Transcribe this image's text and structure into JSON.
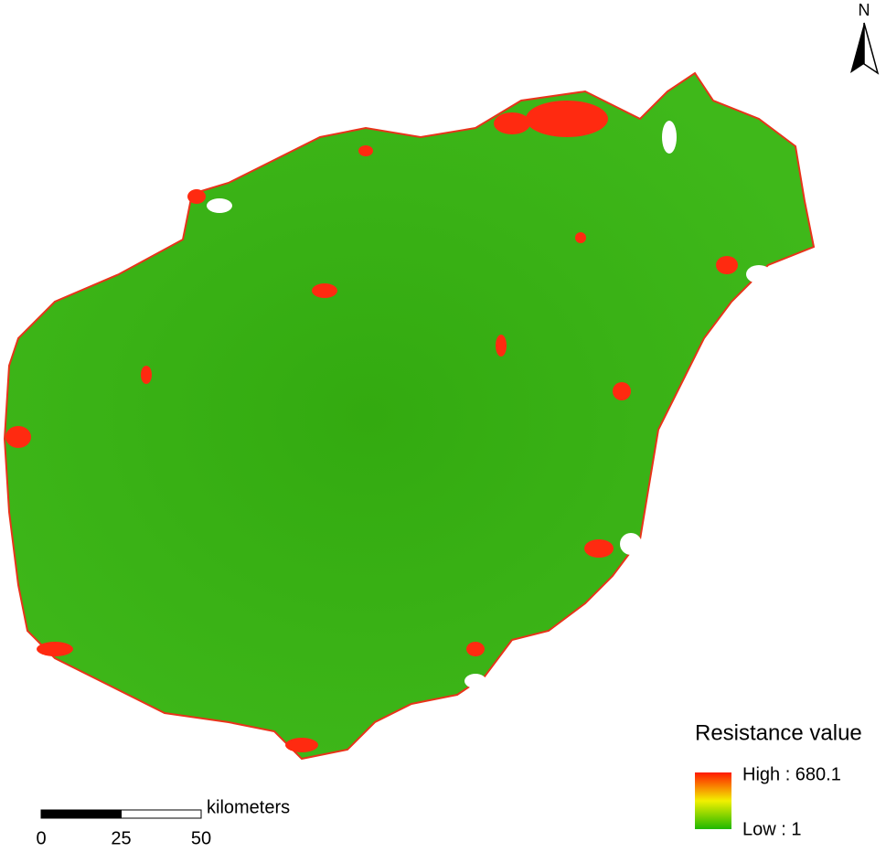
{
  "north_arrow": {
    "label": "N"
  },
  "legend": {
    "title": "Resistance value",
    "high_label": "High : 680.1",
    "low_label": "Low : 1"
  },
  "scale_bar": {
    "unit": "kilometers",
    "ticks": [
      0,
      25,
      50
    ]
  }
}
